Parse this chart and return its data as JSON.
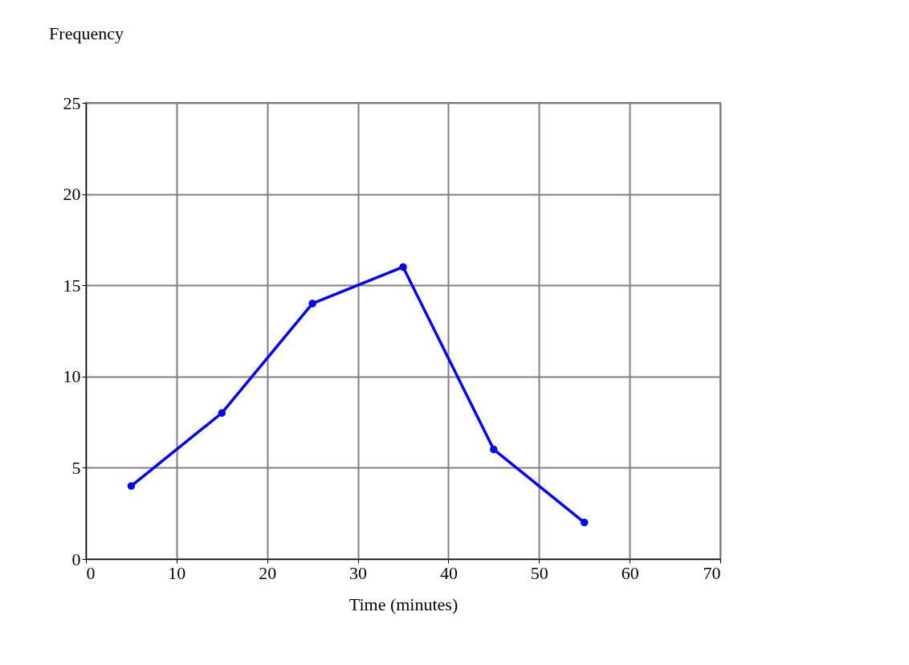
{
  "chart_data": {
    "type": "line",
    "xlabel": "Time (minutes)",
    "ylabel": "Frequency",
    "x": [
      5,
      15,
      25,
      35,
      45,
      55
    ],
    "series": [
      {
        "color": "#0000ff",
        "values": [
          4,
          8,
          14,
          16,
          6,
          2
        ]
      }
    ],
    "xlim": [
      0,
      70
    ],
    "xticks": [
      0,
      10,
      20,
      30,
      40,
      50,
      60,
      70
    ],
    "ylim": [
      0,
      25
    ],
    "yticks": [
      0,
      5,
      10,
      15,
      20,
      25
    ],
    "grid": true,
    "marker": "circle",
    "line_style": "solid"
  }
}
